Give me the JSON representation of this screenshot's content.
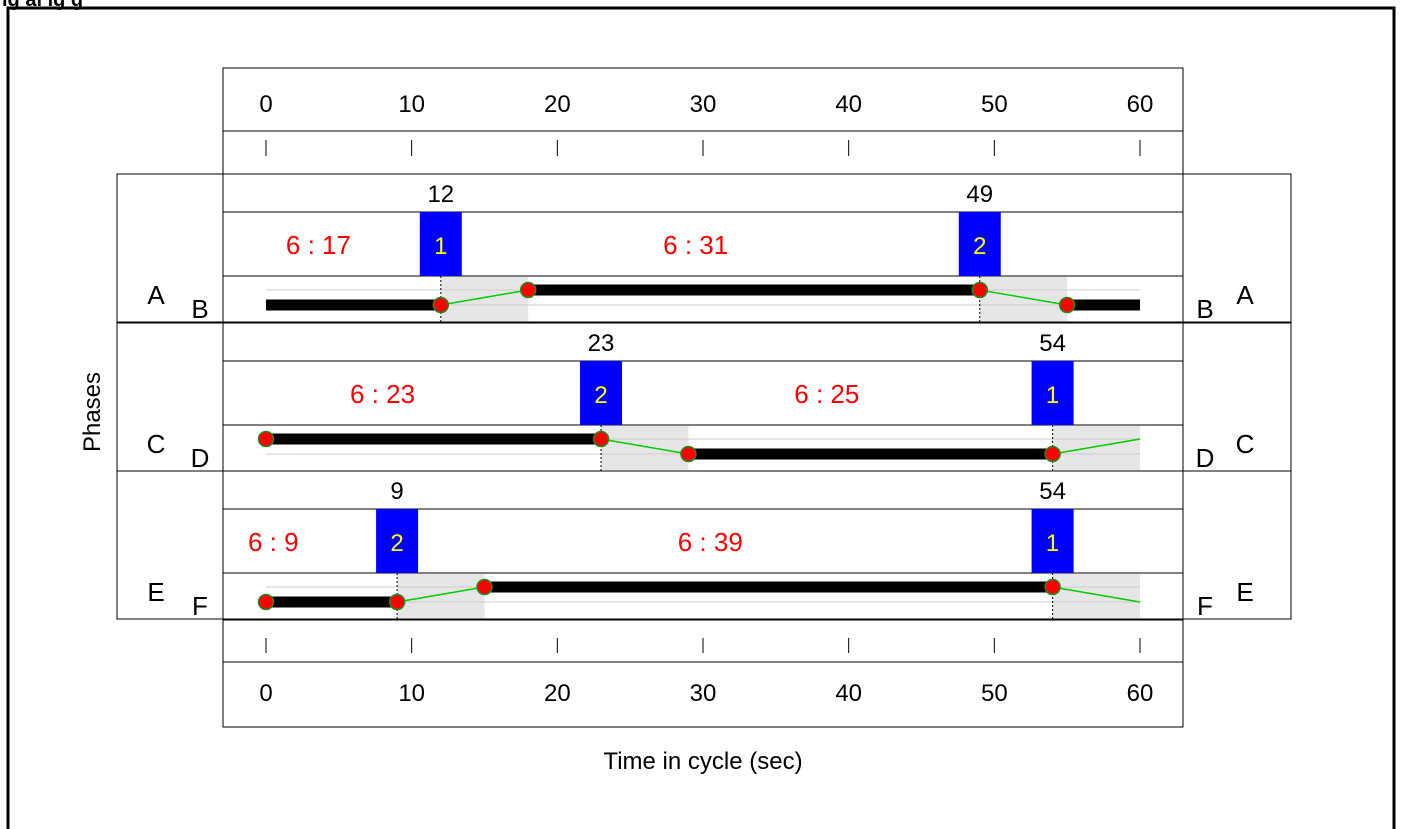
{
  "header_fragment": "ig   al   ig   g",
  "axis": {
    "x_min": 0,
    "x_max": 60,
    "ticks": [
      "0",
      "10",
      "20",
      "30",
      "40",
      "50",
      "60"
    ],
    "xlabel": "Time in cycle (sec)",
    "ylabel": "Phases"
  },
  "colors": {
    "frame": "#000000",
    "offset_text": "#ff0000",
    "stage_box": "#0000ff",
    "stage_text": "#ffff00",
    "band_line": "#000000",
    "transition_line": "#00cc00",
    "marker_fill": "#ff0000",
    "marker_stroke": "#228b22",
    "intergreen_fill": "#e6e6e6"
  },
  "rows": [
    {
      "left_outer": "A",
      "left_inner": "B",
      "right_inner": "B",
      "right_outer": "A",
      "markers": [
        {
          "t": 12,
          "label": "12",
          "stage": "1"
        },
        {
          "t": 49,
          "label": "49",
          "stage": "2"
        }
      ],
      "offsets": [
        {
          "t": 3.6,
          "text": "6 : 17"
        },
        {
          "t": 29.5,
          "text": "6 : 31"
        }
      ],
      "shaded": [
        [
          12,
          18
        ],
        [
          49,
          55
        ]
      ],
      "band": {
        "start_level": "low",
        "segments": [
          {
            "from": 0,
            "to": 12,
            "level": "low"
          },
          {
            "from": 12,
            "to": 18,
            "level": "transition"
          },
          {
            "from": 18,
            "to": 49,
            "level": "high"
          },
          {
            "from": 49,
            "to": 55,
            "level": "transition"
          },
          {
            "from": 55,
            "to": 60,
            "level": "low"
          }
        ],
        "dots": [
          {
            "t": 12,
            "level": "low"
          },
          {
            "t": 18,
            "level": "high"
          },
          {
            "t": 49,
            "level": "high"
          },
          {
            "t": 55,
            "level": "low"
          }
        ]
      }
    },
    {
      "left_outer": "C",
      "left_inner": "D",
      "right_inner": "D",
      "right_outer": "C",
      "markers": [
        {
          "t": 23,
          "label": "23",
          "stage": "2"
        },
        {
          "t": 54,
          "label": "54",
          "stage": "1"
        }
      ],
      "offsets": [
        {
          "t": 8,
          "text": "6 : 23"
        },
        {
          "t": 38.5,
          "text": "6 : 25"
        }
      ],
      "shaded": [
        [
          23,
          29
        ],
        [
          54,
          60
        ]
      ],
      "band": {
        "segments": [
          {
            "from": 0,
            "to": 23,
            "level": "high"
          },
          {
            "from": 23,
            "to": 29,
            "level": "transition"
          },
          {
            "from": 29,
            "to": 54,
            "level": "low"
          },
          {
            "from": 54,
            "to": 60,
            "level": "transition"
          }
        ],
        "dots": [
          {
            "t": 0,
            "level": "high"
          },
          {
            "t": 23,
            "level": "high"
          },
          {
            "t": 29,
            "level": "low"
          },
          {
            "t": 54,
            "level": "low"
          }
        ]
      }
    },
    {
      "left_outer": "E",
      "left_inner": "F",
      "right_inner": "F",
      "right_outer": "E",
      "markers": [
        {
          "t": 9,
          "label": "9",
          "stage": "2"
        },
        {
          "t": 54,
          "label": "54",
          "stage": "1"
        }
      ],
      "offsets": [
        {
          "t": 0.5,
          "text": "6 : 9"
        },
        {
          "t": 30.5,
          "text": "6 : 39"
        }
      ],
      "shaded": [
        [
          9,
          15
        ],
        [
          54,
          60
        ]
      ],
      "band": {
        "segments": [
          {
            "from": 0,
            "to": 9,
            "level": "low"
          },
          {
            "from": 9,
            "to": 15,
            "level": "transition"
          },
          {
            "from": 15,
            "to": 54,
            "level": "high"
          },
          {
            "from": 54,
            "to": 60,
            "level": "transition_down"
          }
        ],
        "dots": [
          {
            "t": 0,
            "level": "low"
          },
          {
            "t": 9,
            "level": "low"
          },
          {
            "t": 15,
            "level": "high"
          },
          {
            "t": 54,
            "level": "high"
          }
        ]
      }
    }
  ]
}
